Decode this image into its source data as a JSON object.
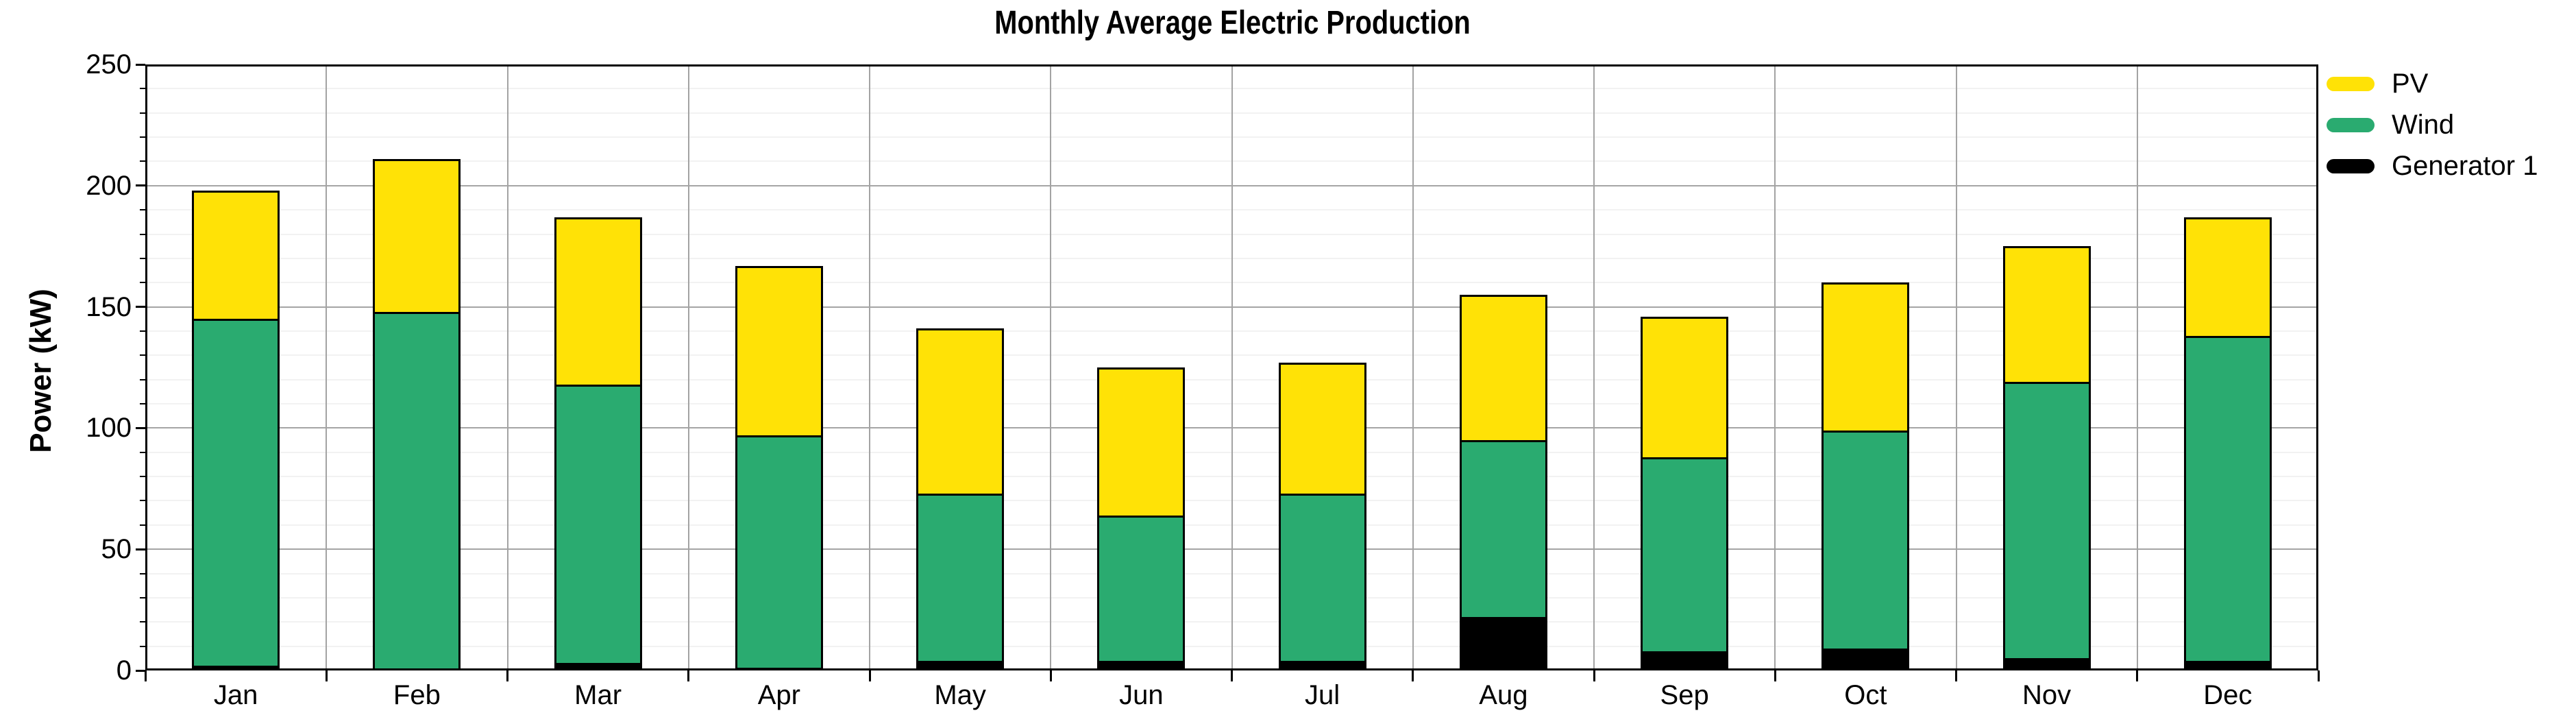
{
  "title": "Monthly Average Electric Production",
  "y_axis_title": "Power (kW)",
  "legend": {
    "position": "outside-right",
    "items": [
      {
        "label": "PV",
        "color": "#FFE206"
      },
      {
        "label": "Wind",
        "color": "#2AAB70"
      },
      {
        "label": "Generator 1",
        "color": "#000000"
      }
    ]
  },
  "colors": {
    "pv": "#FFE206",
    "wind": "#2AAB70",
    "generator1": "#000000",
    "major_grid": "#A5A5A5",
    "minor_grid": "#F2F2F2",
    "axis": "#000000",
    "background": "#FFFFFF"
  },
  "chart_data": {
    "type": "bar",
    "stacked": true,
    "title": "Monthly Average Electric Production",
    "xlabel": "",
    "ylabel": "Power (kW)",
    "ylim": [
      0,
      250
    ],
    "y_major_ticks": [
      0,
      50,
      100,
      150,
      200,
      250
    ],
    "y_minor_step": 10,
    "grid": true,
    "legend_position": "outside-right",
    "categories": [
      "Jan",
      "Feb",
      "Mar",
      "Apr",
      "May",
      "Jun",
      "Jul",
      "Aug",
      "Sep",
      "Oct",
      "Nov",
      "Dec"
    ],
    "series": [
      {
        "name": "Generator 1",
        "color": "#000000",
        "values": [
          2,
          0,
          3,
          1,
          4,
          4,
          4,
          22,
          8,
          9,
          5,
          4
        ]
      },
      {
        "name": "Wind",
        "color": "#2AAB70",
        "values": [
          143,
          148,
          115,
          96,
          69,
          60,
          69,
          73,
          80,
          90,
          114,
          134
        ]
      },
      {
        "name": "PV",
        "color": "#FFE206",
        "values": [
          53,
          63,
          69,
          70,
          68,
          61,
          54,
          60,
          58,
          61,
          56,
          49
        ]
      }
    ],
    "stack_totals": [
      198,
      211,
      187,
      167,
      141,
      125,
      127,
      155,
      146,
      160,
      175,
      187
    ]
  }
}
